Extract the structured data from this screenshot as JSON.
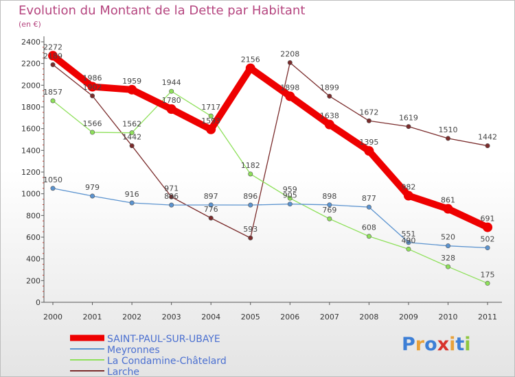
{
  "chart_data": {
    "type": "line",
    "title": "Evolution du Montant de la Dette par Habitant",
    "subtitle": "(en €)",
    "xlabel": "",
    "ylabel": "",
    "ylim": [
      0,
      2400
    ],
    "yticks": [
      0,
      200,
      400,
      600,
      800,
      1000,
      1200,
      1400,
      1600,
      1800,
      2000,
      2200,
      2400
    ],
    "categories": [
      "2000",
      "2001",
      "2002",
      "2003",
      "2004",
      "2005",
      "2006",
      "2007",
      "2008",
      "2009",
      "2010",
      "2011"
    ],
    "grid": false,
    "legend_position": "bottom-left",
    "series": [
      {
        "name": "SAINT-PAUL-SUR-UBAYE",
        "color": "#ee0000",
        "values": [
          2272,
          1986,
          1959,
          1780,
          1593,
          2156,
          1898,
          1638,
          1395,
          982,
          861,
          691
        ]
      },
      {
        "name": "Meyronnes",
        "color": "#5b93cf",
        "values": [
          1050,
          979,
          916,
          896,
          897,
          896,
          905,
          898,
          877,
          551,
          520,
          502
        ]
      },
      {
        "name": "La Condamine-Châtelard",
        "color": "#8ee05a",
        "values": [
          1857,
          1566,
          1562,
          1944,
          1717,
          1182,
          959,
          769,
          608,
          490,
          328,
          175
        ]
      },
      {
        "name": "Larche",
        "color": "#7a2b2b",
        "values": [
          2189,
          1902,
          1442,
          971,
          776,
          593,
          2208,
          1899,
          1672,
          1619,
          1510,
          1442
        ]
      }
    ]
  },
  "logo": {
    "text": "Proxiti",
    "colors": [
      "#3d7fd6",
      "#e8a13a",
      "#3d7fd6",
      "#d8332d",
      "#e8a13a",
      "#3d7fd6",
      "#8ec63f"
    ]
  }
}
